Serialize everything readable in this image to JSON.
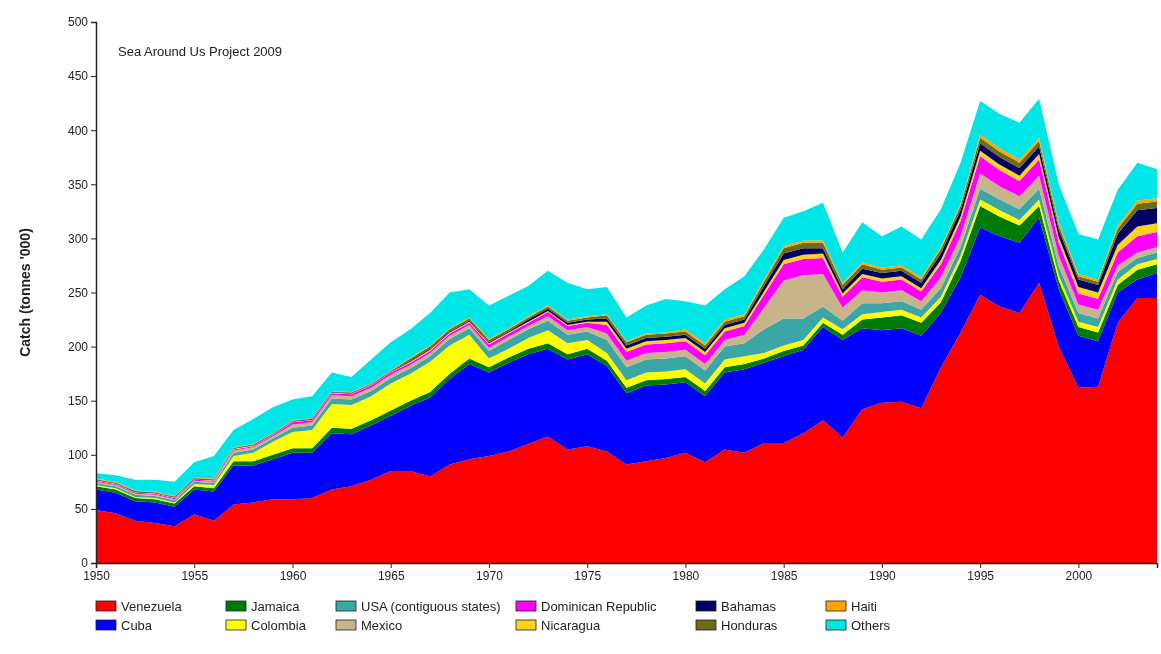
{
  "chart_data": {
    "type": "area",
    "stacked": true,
    "ylabel": "Catch (tonnes '000)",
    "annotations": [
      "Sea Around Us Project 2009"
    ],
    "x": [
      1950,
      1951,
      1952,
      1953,
      1954,
      1955,
      1956,
      1957,
      1958,
      1959,
      1960,
      1961,
      1962,
      1963,
      1964,
      1965,
      1966,
      1967,
      1968,
      1969,
      1970,
      1971,
      1972,
      1973,
      1974,
      1975,
      1976,
      1977,
      1978,
      1979,
      1980,
      1981,
      1982,
      1983,
      1984,
      1985,
      1986,
      1987,
      1988,
      1989,
      1990,
      1991,
      1992,
      1993,
      1994,
      1995,
      1996,
      1997,
      1998,
      1999,
      2000,
      2001,
      2002,
      2003,
      2004
    ],
    "xlim": [
      1950,
      2004
    ],
    "xticks": [
      1950,
      1955,
      1960,
      1965,
      1970,
      1975,
      1980,
      1985,
      1990,
      1995,
      2000
    ],
    "ylim": [
      0,
      500
    ],
    "yticks": [
      0,
      50,
      100,
      150,
      200,
      250,
      300,
      350,
      400,
      450,
      500
    ],
    "grid": false,
    "legend": "bottom",
    "series": [
      {
        "name": "Venezuela",
        "color": "#ff0000",
        "values": [
          49,
          46,
          39,
          37,
          34,
          45,
          39,
          54,
          56,
          59,
          59,
          60,
          68,
          71,
          77,
          85,
          85,
          80,
          91,
          96,
          99,
          103,
          110,
          117,
          105,
          108,
          103,
          91,
          94,
          97,
          102,
          93,
          105,
          102,
          111,
          111,
          120,
          132,
          116,
          142,
          148,
          149,
          143,
          181,
          213,
          248,
          237,
          231,
          259,
          200,
          162,
          163,
          222,
          245,
          245
        ]
      },
      {
        "name": "Cuba",
        "color": "#0000ff",
        "values": [
          19,
          19,
          18,
          19,
          18,
          23,
          27,
          36,
          34,
          37,
          43,
          42,
          52,
          48,
          50,
          51,
          60,
          73,
          79,
          88,
          77,
          82,
          83,
          81,
          83,
          85,
          79,
          66,
          70,
          68,
          65,
          61,
          71,
          77,
          74,
          80,
          77,
          86,
          90,
          75,
          67,
          68,
          67,
          50,
          51,
          62,
          65,
          65,
          60,
          53,
          48,
          42,
          28,
          17,
          23
        ]
      },
      {
        "name": "Jamaica",
        "color": "#007a00",
        "values": [
          3,
          3,
          3,
          3,
          3,
          3,
          3,
          4,
          4,
          4,
          4,
          4,
          5,
          5,
          5,
          5,
          5,
          5,
          5,
          5,
          5,
          5,
          5,
          5,
          5,
          5,
          5,
          5,
          5,
          5,
          5,
          5,
          5,
          5,
          4,
          5,
          4,
          4,
          5,
          8,
          12,
          12,
          12,
          10,
          15,
          20,
          18,
          16,
          11,
          8,
          8,
          8,
          7,
          9,
          8
        ]
      },
      {
        "name": "Colombia",
        "color": "#ffff00",
        "values": [
          1,
          1,
          1,
          1,
          1,
          2,
          3,
          5,
          8,
          12,
          15,
          17,
          22,
          22,
          22,
          25,
          25,
          28,
          26,
          22,
          8,
          8,
          10,
          12,
          10,
          8,
          7,
          7,
          7,
          7,
          7,
          7,
          7,
          7,
          5,
          5,
          5,
          5,
          5,
          5,
          5,
          5,
          5,
          5,
          5,
          6,
          6,
          5,
          6,
          5,
          5,
          5,
          5,
          5,
          5
        ]
      },
      {
        "name": "USA (contiguous states)",
        "color": "#3aa6a6",
        "values": [
          2,
          2,
          2,
          2,
          2,
          2,
          2,
          3,
          3,
          3,
          4,
          4,
          5,
          5,
          5,
          5,
          5,
          5,
          6,
          6,
          7,
          8,
          8,
          9,
          8,
          8,
          12,
          12,
          12,
          12,
          12,
          12,
          12,
          12,
          22,
          25,
          20,
          10,
          8,
          10,
          8,
          8,
          7,
          8,
          8,
          10,
          10,
          10,
          10,
          8,
          8,
          8,
          7,
          6,
          6
        ]
      },
      {
        "name": "Mexico",
        "color": "#c8b48a",
        "values": [
          1,
          1,
          1,
          1,
          1,
          1,
          1,
          2,
          2,
          2,
          3,
          3,
          3,
          3,
          3,
          3,
          3,
          3,
          3,
          3,
          3,
          3,
          3,
          4,
          4,
          4,
          6,
          6,
          6,
          6,
          6,
          6,
          6,
          8,
          20,
          35,
          40,
          30,
          12,
          12,
          10,
          10,
          8,
          10,
          10,
          14,
          12,
          12,
          12,
          10,
          8,
          8,
          6,
          5,
          5
        ]
      },
      {
        "name": "Dominican Republic",
        "color": "#ff00ff",
        "values": [
          1,
          1,
          1,
          1,
          1,
          1,
          1,
          1,
          1,
          1,
          2,
          2,
          2,
          2,
          2,
          2,
          2,
          2,
          2,
          2,
          3,
          3,
          3,
          4,
          4,
          4,
          8,
          8,
          8,
          8,
          8,
          8,
          8,
          8,
          12,
          15,
          15,
          15,
          10,
          12,
          10,
          10,
          9,
          12,
          14,
          16,
          15,
          14,
          15,
          12,
          10,
          10,
          12,
          15,
          14
        ]
      },
      {
        "name": "Nicaragua",
        "color": "#ffd21e",
        "values": [
          0.5,
          0.5,
          0.5,
          0.5,
          0.5,
          0.5,
          0.5,
          0.5,
          0.5,
          0.5,
          0.5,
          0.5,
          0.5,
          0.5,
          0.5,
          0.5,
          1,
          1,
          1,
          1,
          1,
          1,
          1,
          1,
          1,
          1,
          3,
          3,
          3,
          3,
          3,
          3,
          3,
          3,
          3,
          4,
          4,
          4,
          3,
          3,
          3,
          3,
          3,
          4,
          4,
          5,
          5,
          5,
          5,
          5,
          6,
          6,
          7,
          9,
          8
        ]
      },
      {
        "name": "Bahamas",
        "color": "#000066",
        "values": [
          0.5,
          0.5,
          0.5,
          0.5,
          0.5,
          0.5,
          0.5,
          0.5,
          0.5,
          0.5,
          0.5,
          0.5,
          0.5,
          0.5,
          0.5,
          0.5,
          1,
          1,
          1,
          1,
          1,
          1,
          2,
          2,
          2,
          2,
          3,
          3,
          3,
          3,
          3,
          3,
          3,
          3,
          5,
          6,
          6,
          5,
          4,
          5,
          5,
          5,
          5,
          6,
          6,
          7,
          7,
          7,
          7,
          7,
          7,
          7,
          10,
          15,
          14
        ]
      },
      {
        "name": "Honduras",
        "color": "#6b6b1a",
        "values": [
          0.5,
          0.5,
          0.5,
          0.5,
          0.5,
          0.5,
          0.5,
          0.5,
          0.5,
          0.5,
          0.5,
          0.5,
          0.5,
          0.5,
          0.5,
          0.5,
          2,
          2,
          2,
          2,
          2,
          2,
          2,
          2,
          2,
          2,
          3,
          3,
          3,
          3,
          3,
          3,
          3,
          3,
          4,
          5,
          5,
          5,
          4,
          4,
          3,
          3,
          3,
          4,
          4,
          5,
          5,
          5,
          5,
          4,
          3,
          3,
          5,
          6,
          6
        ]
      },
      {
        "name": "Haiti",
        "color": "#ffa500",
        "values": [
          0.5,
          0.5,
          0.5,
          0.5,
          0.5,
          0.5,
          0.5,
          0.5,
          0.5,
          0.5,
          0.5,
          0.5,
          0.5,
          0.5,
          0.5,
          0.5,
          1,
          1,
          1,
          1,
          1,
          1,
          1,
          1,
          1,
          1,
          1,
          1,
          1,
          1,
          2,
          2,
          2,
          2,
          2,
          2,
          2,
          2,
          2,
          2,
          2,
          2,
          2,
          2,
          2,
          3,
          3,
          3,
          3,
          3,
          2,
          2,
          3,
          3,
          3
        ]
      },
      {
        "name": "Others",
        "color": "#00e5e5",
        "values": [
          5,
          6,
          10,
          11,
          13,
          14,
          21,
          16,
          23,
          24,
          19,
          20,
          17,
          14,
          22,
          26,
          26,
          30,
          33,
          26,
          31,
          30,
          28,
          32,
          34,
          25,
          25,
          22,
          26,
          31,
          26,
          35,
          28,
          35,
          28,
          26,
          27,
          35,
          28,
          37,
          29,
          36,
          35,
          35,
          38,
          31,
          32,
          34,
          36,
          35,
          37,
          37,
          33,
          35,
          27
        ]
      }
    ]
  }
}
